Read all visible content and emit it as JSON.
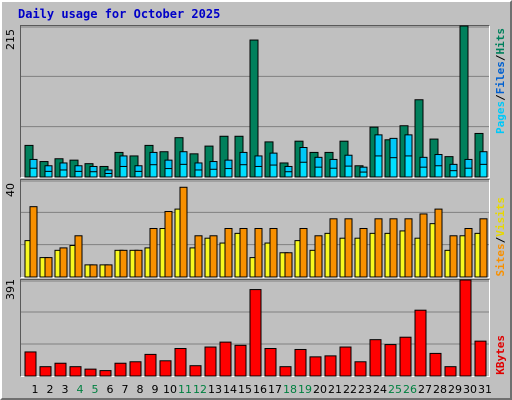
{
  "title": "Daily usage for October 2025",
  "colors": {
    "hits": "#00805c",
    "files": "#00c8f8",
    "pages": "#00e0ff",
    "visits": "#f89000",
    "sites": "#f8f820",
    "kbytes": "#ff0000",
    "weekend_label": "#008040",
    "label": "#000000",
    "title": "#0000c8",
    "background": "#c0c0c0"
  },
  "legend": {
    "pages": "Pages",
    "files": "Files",
    "hits": "Hits",
    "sep": "/",
    "sites": "Sites",
    "visits": "Visits",
    "kbytes": "KBytes"
  },
  "axis_max": {
    "top": "215",
    "middle": "40",
    "bottom": "391"
  },
  "chart_data": [
    {
      "type": "bar",
      "categories": [
        "1",
        "2",
        "3",
        "4",
        "5",
        "6",
        "7",
        "8",
        "9",
        "10",
        "11",
        "12",
        "13",
        "14",
        "15",
        "16",
        "17",
        "18",
        "19",
        "20",
        "21",
        "22",
        "23",
        "24",
        "25",
        "26",
        "27",
        "28",
        "29",
        "30",
        "31"
      ],
      "weekend_days": [
        "4",
        "5",
        "11",
        "12",
        "18",
        "19",
        "25",
        "26"
      ],
      "ylim": [
        0,
        215
      ],
      "ylabel": "Pages / Files / Hits",
      "series": [
        {
          "name": "Hits",
          "values": [
            45,
            22,
            26,
            24,
            19,
            15,
            35,
            30,
            45,
            36,
            56,
            33,
            44,
            58,
            58,
            195,
            50,
            20,
            51,
            35,
            35,
            51,
            16,
            71,
            53,
            73,
            110,
            54,
            29,
            215,
            62
          ]
        },
        {
          "name": "Files",
          "values": [
            25,
            16,
            20,
            16,
            15,
            10,
            30,
            16,
            35,
            24,
            36,
            20,
            22,
            24,
            35,
            30,
            34,
            15,
            42,
            28,
            25,
            31,
            14,
            60,
            55,
            60,
            28,
            32,
            18,
            25,
            36
          ]
        },
        {
          "name": "Pages",
          "values": [
            25,
            16,
            20,
            16,
            15,
            10,
            30,
            16,
            35,
            24,
            36,
            20,
            22,
            24,
            35,
            30,
            34,
            15,
            42,
            28,
            25,
            31,
            14,
            60,
            55,
            60,
            28,
            32,
            18,
            25,
            36
          ]
        }
      ]
    },
    {
      "type": "bar",
      "categories": [
        "1",
        "2",
        "3",
        "4",
        "5",
        "6",
        "7",
        "8",
        "9",
        "10",
        "11",
        "12",
        "13",
        "14",
        "15",
        "16",
        "17",
        "18",
        "19",
        "20",
        "21",
        "22",
        "23",
        "24",
        "25",
        "26",
        "27",
        "28",
        "29",
        "30",
        "31"
      ],
      "ylim": [
        0,
        40
      ],
      "ylabel": "Sites / Visits",
      "series": [
        {
          "name": "Visits",
          "values": [
            29,
            8,
            12,
            17,
            5,
            5,
            11,
            11,
            20,
            27,
            37,
            17,
            17,
            20,
            20,
            20,
            20,
            10,
            20,
            17,
            24,
            24,
            20,
            24,
            24,
            24,
            26,
            28,
            17,
            20,
            24
          ]
        },
        {
          "name": "Sites",
          "values": [
            15,
            8,
            11,
            13,
            5,
            5,
            11,
            11,
            12,
            20,
            28,
            12,
            16,
            14,
            18,
            8,
            14,
            10,
            15,
            11,
            18,
            16,
            16,
            18,
            18,
            19,
            16,
            22,
            11,
            17,
            18
          ]
        }
      ]
    },
    {
      "type": "bar",
      "categories": [
        "1",
        "2",
        "3",
        "4",
        "5",
        "6",
        "7",
        "8",
        "9",
        "10",
        "11",
        "12",
        "13",
        "14",
        "15",
        "16",
        "17",
        "18",
        "19",
        "20",
        "21",
        "22",
        "23",
        "24",
        "25",
        "26",
        "27",
        "28",
        "29",
        "30",
        "31"
      ],
      "ylim": [
        0,
        391
      ],
      "ylabel": "KBytes",
      "series": [
        {
          "name": "KBytes",
          "values": [
            98,
            38,
            52,
            38,
            28,
            22,
            52,
            58,
            88,
            62,
            112,
            42,
            118,
            138,
            125,
            352,
            112,
            38,
            108,
            78,
            82,
            118,
            58,
            148,
            128,
            158,
            268,
            92,
            38,
            391,
            142
          ]
        }
      ]
    }
  ]
}
